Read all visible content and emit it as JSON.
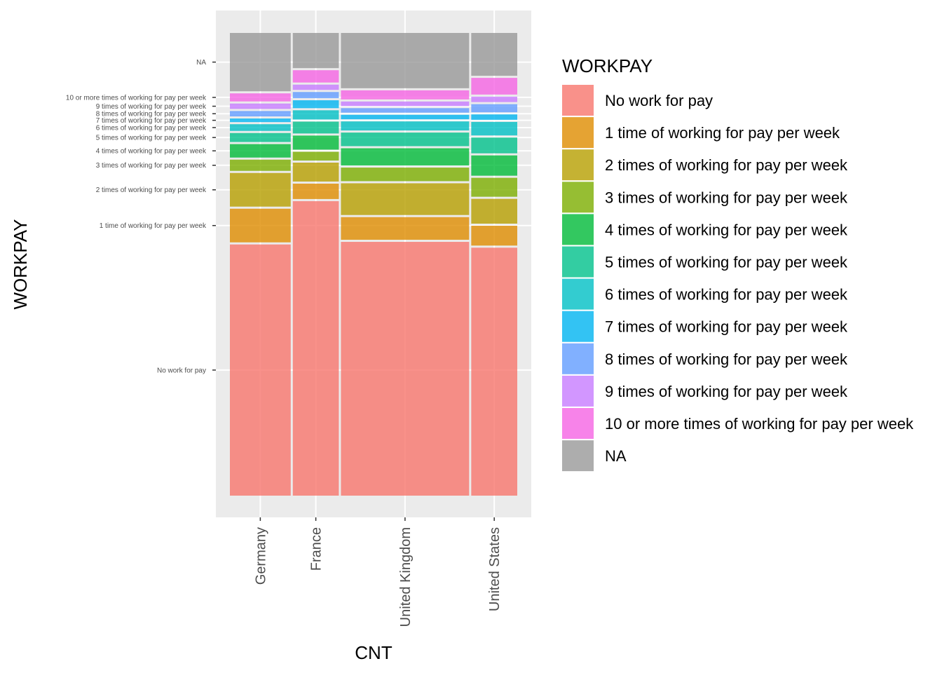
{
  "chart_data": {
    "type": "mosaic",
    "xlabel": "CNT",
    "ylabel": "WORKPAY",
    "legend_title": "WORKPAY",
    "legend_position": "right",
    "grid": true,
    "categories": [
      "No work for pay",
      "1 time of working for pay per week",
      "2 times of working for pay per week",
      "3 times of working for pay per week",
      "4 times of working for pay per week",
      "5 times of working for pay per week",
      "6 times of working for pay per week",
      "7 times of working for pay per week",
      "8 times of working for pay per week",
      "9 times of working for pay per week",
      "10 or more times of working for pay per week",
      "NA"
    ],
    "y_tick_labels": [
      "No work for pay",
      "1 time of working for pay per week",
      "2 times of working for pay per week",
      "3 times of working for pay per week",
      "4 times of working for pay per week",
      "5 times of working for pay per week",
      "6 times of working for pay per week",
      "7 times of working for pay per week",
      "8 times of working for pay per week",
      "9 times of working for pay per week",
      "10 or more times of working for pay per week",
      "NA"
    ],
    "colors": [
      "#F8766D",
      "#DE8C00",
      "#B79F00",
      "#7CAE00",
      "#00BA38",
      "#00C08B",
      "#00BFC4",
      "#00B4F0",
      "#619CFF",
      "#C77CFF",
      "#F564E3",
      "#999999"
    ],
    "series": [
      {
        "name": "Germany",
        "width": 0.185,
        "shares": [
          0.56,
          0.075,
          0.075,
          0.025,
          0.03,
          0.02,
          0.015,
          0.008,
          0.012,
          0.012,
          0.018,
          0.13
        ]
      },
      {
        "name": "France",
        "width": 0.14,
        "shares": [
          0.67,
          0.035,
          0.043,
          0.02,
          0.032,
          0.027,
          0.021,
          0.018,
          0.014,
          0.012,
          0.028,
          0.08
        ]
      },
      {
        "name": "United Kingdom",
        "width": 0.39,
        "shares": [
          0.56,
          0.05,
          0.07,
          0.03,
          0.038,
          0.03,
          0.02,
          0.01,
          0.01,
          0.01,
          0.02,
          0.122
        ]
      },
      {
        "name": "United States",
        "width": 0.14,
        "shares": [
          0.55,
          0.044,
          0.055,
          0.042,
          0.045,
          0.035,
          0.03,
          0.012,
          0.018,
          0.012,
          0.037,
          0.095
        ]
      }
    ]
  }
}
